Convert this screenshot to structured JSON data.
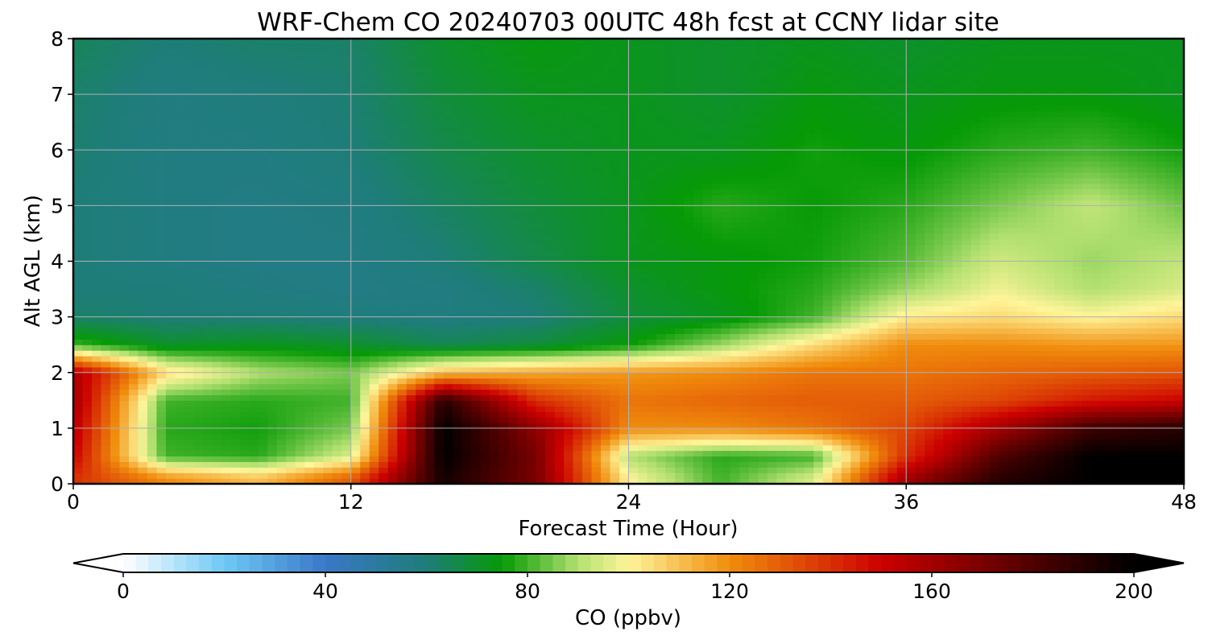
{
  "chart_data": {
    "type": "heatmap",
    "title": "WRF-Chem CO  20240703 00UTC 48h fcst at CCNY lidar site",
    "xlabel": "Forecast Time (Hour)",
    "ylabel": "Alt AGL (km)",
    "xlim": [
      0,
      48
    ],
    "ylim": [
      0,
      8
    ],
    "xticks": [
      0,
      12,
      24,
      36,
      48
    ],
    "yticks": [
      0,
      1,
      2,
      3,
      4,
      5,
      6,
      7,
      8
    ],
    "grid": true,
    "colorbar": {
      "label": "CO  (ppbv)",
      "range": [
        0,
        200
      ],
      "ticks": [
        0,
        40,
        80,
        120,
        160,
        200
      ],
      "extend": "both",
      "colormap_stops": [
        {
          "value": 0,
          "color": "#ffffff"
        },
        {
          "value": 20,
          "color": "#6ec9f5"
        },
        {
          "value": 40,
          "color": "#3a78c8"
        },
        {
          "value": 60,
          "color": "#1e7d78"
        },
        {
          "value": 75,
          "color": "#069a06"
        },
        {
          "value": 90,
          "color": "#b2e070"
        },
        {
          "value": 100,
          "color": "#fff59a"
        },
        {
          "value": 120,
          "color": "#f08c0c"
        },
        {
          "value": 150,
          "color": "#cc0000"
        },
        {
          "value": 180,
          "color": "#500000"
        },
        {
          "value": 200,
          "color": "#000000"
        }
      ]
    },
    "time_hours": [
      0,
      4,
      8,
      12,
      16,
      20,
      24,
      28,
      32,
      36,
      40,
      44,
      48
    ],
    "altitudes_km": [
      0.1,
      0.5,
      1.0,
      1.5,
      2.0,
      2.5,
      3.0,
      3.5,
      4.0,
      5.0,
      6.0,
      7.0,
      8.0
    ],
    "values": [
      [
        140,
        120,
        110,
        130,
        195,
        170,
        100,
        80,
        95,
        160,
        190,
        200,
        200
      ],
      [
        150,
        80,
        78,
        95,
        200,
        170,
        90,
        78,
        80,
        140,
        180,
        200,
        200
      ],
      [
        155,
        78,
        76,
        85,
        200,
        165,
        120,
        120,
        125,
        135,
        160,
        185,
        190
      ],
      [
        160,
        80,
        78,
        80,
        190,
        140,
        125,
        128,
        130,
        130,
        135,
        145,
        150
      ],
      [
        158,
        105,
        90,
        85,
        110,
        115,
        118,
        120,
        125,
        125,
        128,
        130,
        132
      ],
      [
        80,
        70,
        72,
        70,
        65,
        68,
        75,
        88,
        105,
        120,
        120,
        118,
        118
      ],
      [
        62,
        60,
        60,
        59,
        58,
        60,
        68,
        72,
        80,
        102,
        105,
        100,
        105
      ],
      [
        60,
        60,
        58,
        57,
        58,
        62,
        70,
        74,
        78,
        88,
        98,
        90,
        95
      ],
      [
        60,
        58,
        57,
        57,
        60,
        66,
        72,
        74,
        76,
        82,
        94,
        88,
        92
      ],
      [
        60,
        58,
        57,
        58,
        63,
        68,
        72,
        78,
        75,
        78,
        85,
        92,
        84
      ],
      [
        61,
        58,
        58,
        60,
        66,
        70,
        72,
        72,
        76,
        74,
        78,
        80,
        76
      ],
      [
        62,
        58,
        59,
        61,
        68,
        72,
        72,
        70,
        74,
        72,
        74,
        74,
        72
      ],
      [
        64,
        60,
        62,
        62,
        70,
        74,
        72,
        70,
        72,
        70,
        72,
        72,
        72
      ]
    ]
  }
}
